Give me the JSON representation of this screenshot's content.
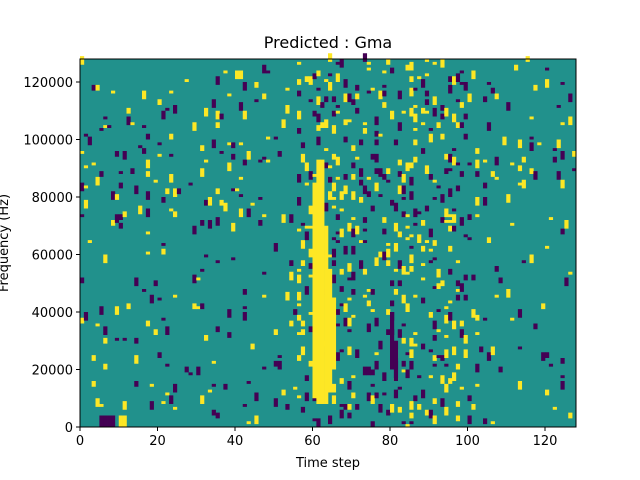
{
  "chart_data": {
    "type": "heatmap",
    "title": "Predicted : Gma",
    "xlabel": "Time step",
    "ylabel": "Frequency (Hz)",
    "xlim": [
      0,
      128
    ],
    "ylim": [
      0,
      128000
    ],
    "x_ticks": [
      0,
      20,
      40,
      60,
      80,
      100,
      120
    ],
    "y_ticks": [
      0,
      20000,
      40000,
      60000,
      80000,
      100000,
      120000
    ],
    "y_tick_labels": [
      "0",
      "20000",
      "40000",
      "60000",
      "80000",
      "100000",
      "120000"
    ],
    "rows": 128,
    "cols": 128,
    "colormap": {
      "dark": "#440154",
      "mid": "#21918c",
      "bright": "#fde725"
    },
    "background_level": "mid",
    "bright_cells": [
      {
        "t": 61,
        "f0": 8000,
        "f1": 93000
      },
      {
        "t": 62,
        "f0": 8000,
        "f1": 93000
      },
      {
        "t": 63,
        "f0": 8000,
        "f1": 70000
      },
      {
        "t": 64,
        "f0": 14000,
        "f1": 55000
      },
      {
        "t": 65,
        "f0": 20000,
        "f1": 45000
      },
      {
        "t": 60,
        "f0": 10000,
        "f1": 85000
      },
      {
        "t": 10,
        "f0": 0,
        "f1": 4000
      },
      {
        "t": 11,
        "f0": 0,
        "f1": 4000
      }
    ],
    "dark_cells": [
      {
        "t": 5,
        "f0": 0,
        "f1": 4000
      },
      {
        "t": 6,
        "f0": 0,
        "f1": 4000
      },
      {
        "t": 7,
        "f0": 0,
        "f1": 4000
      },
      {
        "t": 8,
        "f0": 0,
        "f1": 4000
      },
      {
        "t": 80,
        "f0": 20000,
        "f1": 40000
      },
      {
        "t": 81,
        "f0": 16000,
        "f1": 30000
      }
    ],
    "noise_seed": 42,
    "noise_density": 0.03
  }
}
